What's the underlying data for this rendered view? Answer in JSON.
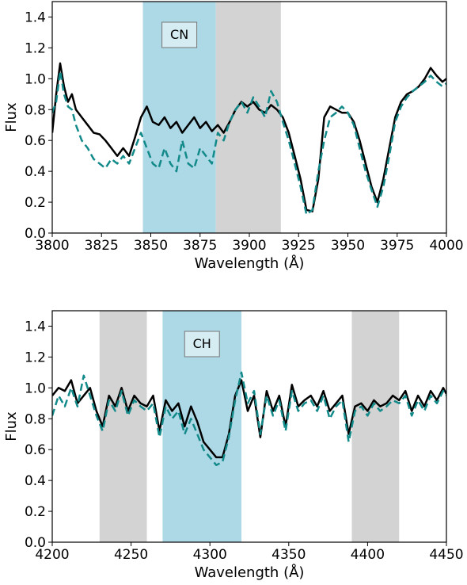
{
  "chart_data": [
    {
      "type": "line",
      "title": "",
      "xlabel": "Wavelength (Å)",
      "ylabel": "Flux",
      "xlim": [
        3800,
        4000
      ],
      "ylim": [
        0.0,
        1.5
      ],
      "xticks": [
        3800,
        3825,
        3850,
        3875,
        3900,
        3925,
        3950,
        3975,
        4000
      ],
      "yticks": [
        0.0,
        0.2,
        0.4,
        0.6,
        0.8,
        1.0,
        1.2,
        1.4
      ],
      "xtick_labels": [
        "3800",
        "3825",
        "3850",
        "3875",
        "3900",
        "3925",
        "3950",
        "3975",
        "4000"
      ],
      "ytick_labels": [
        "0.0",
        "0.2",
        "0.4",
        "0.6",
        "0.8",
        "1.0",
        "1.2",
        "1.4"
      ],
      "grid": false,
      "bands": [
        {
          "start": 3846,
          "end": 3883,
          "color": "#add8e6",
          "label": "CN"
        },
        {
          "start": 3883,
          "end": 3916,
          "color": "#d3d3d3",
          "label": ""
        }
      ],
      "series": [
        {
          "color": "#000000",
          "style": "solid",
          "x": [
            3800,
            3802,
            3804,
            3806,
            3808,
            3810,
            3812,
            3815,
            3818,
            3821,
            3824,
            3827,
            3830,
            3833,
            3836,
            3839,
            3842,
            3845,
            3848,
            3851,
            3854,
            3857,
            3860,
            3863,
            3866,
            3869,
            3872,
            3875,
            3878,
            3881,
            3884,
            3887,
            3890,
            3893,
            3896,
            3899,
            3902,
            3905,
            3908,
            3911,
            3914,
            3917,
            3920,
            3923,
            3926,
            3929,
            3932,
            3935,
            3938,
            3941,
            3944,
            3947,
            3950,
            3953,
            3956,
            3959,
            3962,
            3965,
            3968,
            3971,
            3974,
            3977,
            3980,
            3983,
            3986,
            3989,
            3992,
            3995,
            3998,
            4000
          ],
          "values": [
            0.65,
            0.9,
            1.1,
            0.95,
            0.85,
            0.9,
            0.8,
            0.75,
            0.7,
            0.65,
            0.64,
            0.6,
            0.55,
            0.5,
            0.55,
            0.5,
            0.62,
            0.75,
            0.82,
            0.72,
            0.7,
            0.75,
            0.68,
            0.72,
            0.65,
            0.7,
            0.75,
            0.68,
            0.72,
            0.66,
            0.7,
            0.65,
            0.72,
            0.8,
            0.85,
            0.82,
            0.85,
            0.8,
            0.78,
            0.83,
            0.8,
            0.75,
            0.65,
            0.5,
            0.35,
            0.15,
            0.14,
            0.35,
            0.75,
            0.82,
            0.8,
            0.78,
            0.78,
            0.72,
            0.6,
            0.45,
            0.3,
            0.2,
            0.35,
            0.55,
            0.75,
            0.85,
            0.9,
            0.92,
            0.95,
            1.0,
            1.07,
            1.02,
            0.98,
            1.0
          ]
        },
        {
          "color": "#138a8a",
          "style": "dashed",
          "x": [
            3800,
            3802,
            3804,
            3806,
            3808,
            3810,
            3812,
            3815,
            3818,
            3821,
            3824,
            3827,
            3830,
            3833,
            3836,
            3839,
            3842,
            3845,
            3848,
            3851,
            3854,
            3857,
            3860,
            3863,
            3866,
            3869,
            3872,
            3875,
            3878,
            3881,
            3884,
            3887,
            3890,
            3893,
            3896,
            3899,
            3902,
            3905,
            3908,
            3911,
            3914,
            3917,
            3920,
            3923,
            3926,
            3929,
            3932,
            3935,
            3938,
            3941,
            3944,
            3947,
            3950,
            3953,
            3956,
            3959,
            3962,
            3965,
            3968,
            3971,
            3974,
            3977,
            3980,
            3983,
            3986,
            3989,
            3992,
            3995,
            3998,
            4000
          ],
          "values": [
            0.78,
            0.85,
            1.05,
            0.9,
            0.82,
            0.8,
            0.7,
            0.6,
            0.55,
            0.48,
            0.45,
            0.42,
            0.48,
            0.45,
            0.5,
            0.45,
            0.55,
            0.65,
            0.55,
            0.45,
            0.42,
            0.55,
            0.45,
            0.4,
            0.6,
            0.45,
            0.42,
            0.55,
            0.5,
            0.45,
            0.65,
            0.6,
            0.72,
            0.8,
            0.85,
            0.78,
            0.88,
            0.82,
            0.75,
            0.92,
            0.85,
            0.72,
            0.6,
            0.45,
            0.3,
            0.12,
            0.15,
            0.4,
            0.6,
            0.75,
            0.78,
            0.82,
            0.78,
            0.7,
            0.55,
            0.4,
            0.28,
            0.17,
            0.3,
            0.5,
            0.72,
            0.82,
            0.88,
            0.92,
            0.95,
            0.98,
            1.02,
            0.98,
            0.95,
            0.97
          ]
        }
      ]
    },
    {
      "type": "line",
      "title": "",
      "xlabel": "Wavelength (Å)",
      "ylabel": "Flux",
      "xlim": [
        4200,
        4450
      ],
      "ylim": [
        0.0,
        1.5
      ],
      "xticks": [
        4200,
        4250,
        4300,
        4350,
        4400,
        4450
      ],
      "yticks": [
        0.0,
        0.2,
        0.4,
        0.6,
        0.8,
        1.0,
        1.2,
        1.4
      ],
      "xtick_labels": [
        "4200",
        "4250",
        "4300",
        "4350",
        "4400",
        "4450"
      ],
      "ytick_labels": [
        "0.0",
        "0.2",
        "0.4",
        "0.6",
        "0.8",
        "1.0",
        "1.2",
        "1.4"
      ],
      "grid": false,
      "bands": [
        {
          "start": 4230,
          "end": 4260,
          "color": "#d3d3d3",
          "label": ""
        },
        {
          "start": 4270,
          "end": 4320,
          "color": "#add8e6",
          "label": "CH"
        },
        {
          "start": 4390,
          "end": 4420,
          "color": "#d3d3d3",
          "label": ""
        }
      ],
      "series": [
        {
          "color": "#000000",
          "style": "solid",
          "x": [
            4200,
            4204,
            4208,
            4212,
            4216,
            4220,
            4224,
            4228,
            4232,
            4236,
            4240,
            4244,
            4248,
            4252,
            4256,
            4260,
            4264,
            4268,
            4272,
            4276,
            4280,
            4284,
            4288,
            4292,
            4296,
            4300,
            4304,
            4308,
            4312,
            4316,
            4320,
            4324,
            4328,
            4332,
            4336,
            4340,
            4344,
            4348,
            4352,
            4356,
            4360,
            4364,
            4368,
            4372,
            4376,
            4380,
            4384,
            4388,
            4392,
            4396,
            4400,
            4404,
            4408,
            4412,
            4416,
            4420,
            4424,
            4428,
            4432,
            4436,
            4440,
            4444,
            4448,
            4450
          ],
          "values": [
            0.95,
            1.0,
            0.98,
            1.05,
            0.9,
            0.95,
            1.0,
            0.85,
            0.75,
            0.95,
            0.88,
            1.0,
            0.85,
            0.95,
            0.9,
            0.88,
            0.95,
            0.72,
            0.92,
            0.85,
            0.9,
            0.75,
            0.88,
            0.78,
            0.65,
            0.6,
            0.55,
            0.55,
            0.7,
            0.95,
            1.05,
            0.85,
            0.95,
            0.68,
            0.98,
            0.85,
            0.95,
            0.75,
            1.02,
            0.88,
            0.92,
            0.95,
            0.88,
            0.98,
            0.85,
            0.9,
            0.95,
            0.7,
            0.88,
            0.9,
            0.85,
            0.92,
            0.88,
            0.9,
            0.95,
            0.92,
            0.98,
            0.85,
            0.95,
            0.88,
            0.98,
            0.92,
            1.0,
            0.96
          ]
        },
        {
          "color": "#138a8a",
          "style": "dashed",
          "x": [
            4200,
            4204,
            4208,
            4212,
            4216,
            4220,
            4224,
            4228,
            4232,
            4236,
            4240,
            4244,
            4248,
            4252,
            4256,
            4260,
            4264,
            4268,
            4272,
            4276,
            4280,
            4284,
            4288,
            4292,
            4296,
            4300,
            4304,
            4308,
            4312,
            4316,
            4320,
            4324,
            4328,
            4332,
            4336,
            4340,
            4344,
            4348,
            4352,
            4356,
            4360,
            4364,
            4368,
            4372,
            4376,
            4380,
            4384,
            4388,
            4392,
            4396,
            4400,
            4404,
            4408,
            4412,
            4416,
            4420,
            4424,
            4428,
            4432,
            4436,
            4440,
            4444,
            4448,
            4450
          ],
          "values": [
            0.82,
            0.95,
            0.88,
            1.0,
            0.88,
            1.08,
            0.95,
            0.82,
            0.72,
            0.92,
            0.85,
            0.98,
            0.82,
            0.92,
            0.88,
            0.85,
            0.9,
            0.68,
            0.88,
            0.8,
            0.85,
            0.7,
            0.8,
            0.7,
            0.6,
            0.55,
            0.5,
            0.52,
            0.68,
            0.92,
            1.1,
            0.9,
            0.98,
            0.7,
            0.95,
            0.82,
            0.92,
            0.72,
            0.98,
            0.85,
            0.9,
            0.92,
            0.85,
            0.95,
            0.8,
            0.88,
            0.92,
            0.65,
            0.85,
            0.88,
            0.82,
            0.9,
            0.85,
            0.88,
            0.92,
            0.9,
            0.95,
            0.82,
            0.92,
            0.85,
            0.95,
            0.9,
            0.98,
            0.95
          ]
        }
      ]
    }
  ]
}
